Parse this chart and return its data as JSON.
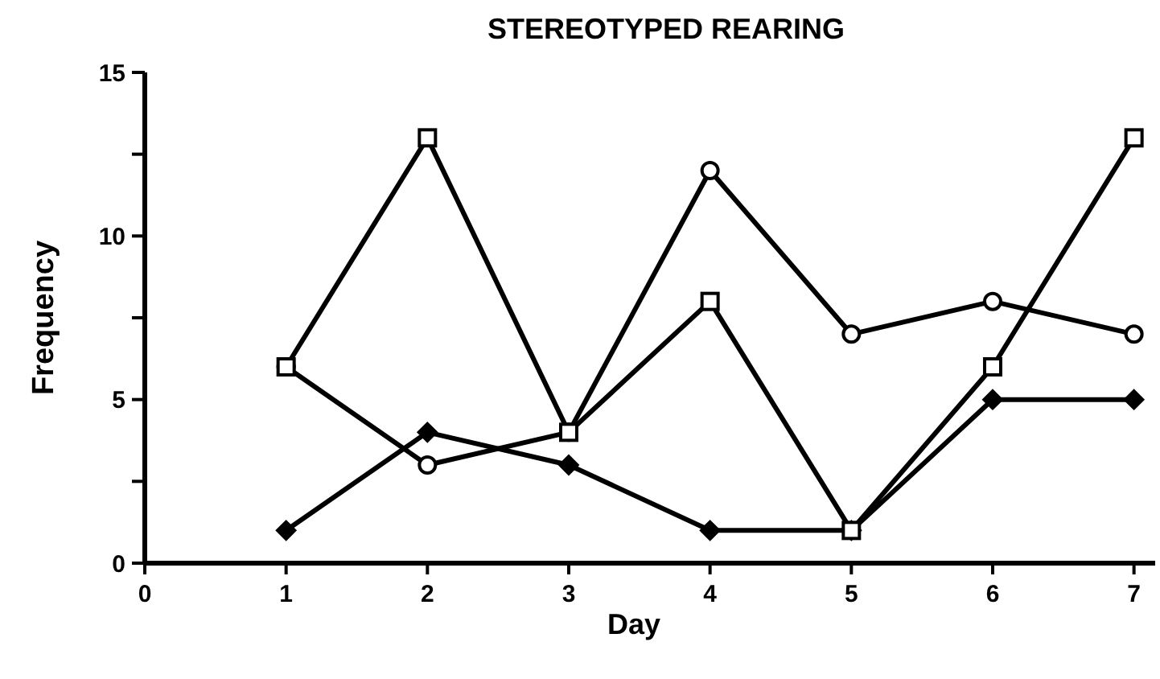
{
  "chart_data": {
    "type": "line",
    "title": "STEREOTYPED REARING",
    "xlabel": "Day",
    "ylabel": "Frequency",
    "x": [
      1,
      2,
      3,
      4,
      5,
      6,
      7
    ],
    "xlim": [
      0,
      7.15
    ],
    "xticks": [
      0,
      1,
      2,
      3,
      4,
      5,
      6,
      7
    ],
    "ylim": [
      0,
      15
    ],
    "yticks": [
      0,
      {
        "value": 2.5,
        "label": null
      },
      5,
      {
        "value": 7.5,
        "label": null
      },
      10,
      {
        "value": 12.5,
        "label": null
      },
      15
    ],
    "grid": false,
    "series": [
      {
        "color": "#000000",
        "marker": "diamond",
        "values": [
          1,
          4,
          3,
          1,
          1,
          5,
          5
        ]
      },
      {
        "color": "#000000",
        "marker": "circle",
        "values": [
          6,
          3,
          4,
          12,
          7,
          8,
          7
        ]
      },
      {
        "color": "#000000",
        "marker": "square",
        "values": [
          6,
          13,
          4,
          8,
          1,
          6,
          13
        ]
      }
    ]
  }
}
